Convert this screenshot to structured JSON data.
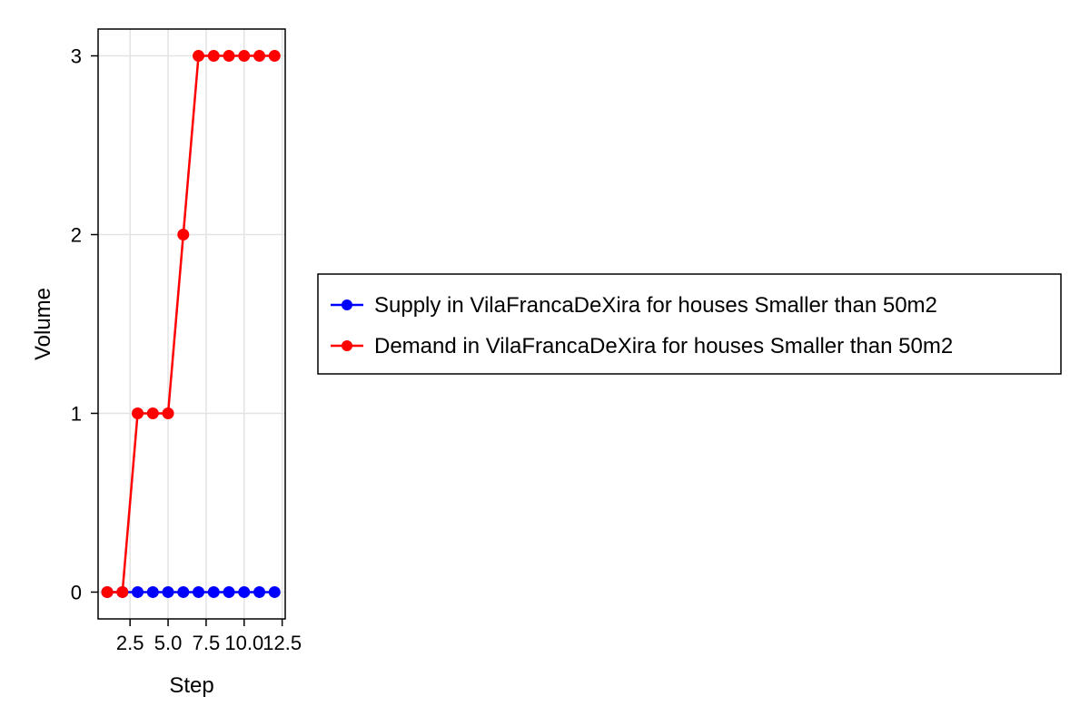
{
  "chart_data": {
    "type": "line",
    "title": "",
    "xlabel": "Step",
    "ylabel": "Volume",
    "xlim": [
      0.4,
      12.7
    ],
    "ylim": [
      -0.15,
      3.15
    ],
    "xticks": [
      2.5,
      5.0,
      7.5,
      10.0,
      12.5
    ],
    "xtick_labels": [
      "2.5",
      "5.0",
      "7.5",
      "10.0",
      "12.5"
    ],
    "yticks": [
      0,
      1,
      2,
      3
    ],
    "ytick_labels": [
      "0",
      "1",
      "2",
      "3"
    ],
    "grid": true,
    "legend_position": "right",
    "x": [
      1,
      2,
      3,
      4,
      5,
      6,
      7,
      8,
      9,
      10,
      11,
      12
    ],
    "series": [
      {
        "name": "Supply in VilaFrancaDeXira for houses Smaller than 50m2",
        "color": "#0000ff",
        "values": [
          0,
          0,
          0,
          0,
          0,
          0,
          0,
          0,
          0,
          0,
          0,
          0
        ]
      },
      {
        "name": "Demand in VilaFrancaDeXira for houses Smaller than 50m2",
        "color": "#ff0000",
        "values": [
          0,
          0,
          1,
          1,
          1,
          2,
          3,
          3,
          3,
          3,
          3,
          3
        ]
      }
    ]
  }
}
